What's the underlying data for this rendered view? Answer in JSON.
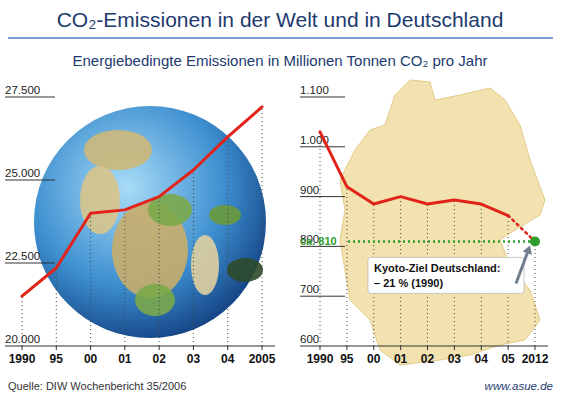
{
  "title": "CO₂-Emissionen in der Welt und in Deutschland",
  "subtitle": "Energiebedingte Emissionen in Millionen Tonnen CO₂ pro Jahr",
  "source": "Quelle: DIW Wochenbericht 35/2006",
  "website": "www.asue.de",
  "chart_data": [
    {
      "type": "line",
      "categories": [
        "1990",
        "95",
        "00",
        "01",
        "02",
        "03",
        "04",
        "2005"
      ],
      "series": [
        {
          "color": "#e2231a",
          "line_style": "solid",
          "values": [
            21500,
            22350,
            24000,
            24100,
            24500,
            25300,
            26300,
            27200
          ]
        }
      ],
      "ylim": [
        20000,
        27500
      ],
      "yticks": [
        {
          "value": 20000,
          "label": "20.000"
        },
        {
          "value": 22500,
          "label": "22.500"
        },
        {
          "value": 25000,
          "label": "25.000"
        },
        {
          "value": 27500,
          "label": "27.500"
        }
      ],
      "grid": true
    },
    {
      "type": "line",
      "categories": [
        "1990",
        "95",
        "00",
        "01",
        "02",
        "03",
        "04",
        "05",
        "2012"
      ],
      "series": [
        {
          "color": "#e2231a",
          "line_style": "solid",
          "values": [
            1030,
            920,
            885,
            900,
            885,
            893,
            885,
            862,
            null
          ]
        },
        {
          "color": "#e2231a",
          "line_style": "dotted",
          "values": [
            null,
            null,
            null,
            null,
            null,
            null,
            null,
            862,
            810
          ]
        }
      ],
      "ylim": [
        600,
        1100
      ],
      "yticks": [
        600,
        700,
        800,
        900,
        {
          "value": 1000,
          "label": "1.000"
        },
        {
          "value": 1100,
          "label": "1.100"
        }
      ],
      "grid": true,
      "annotations": [
        {
          "value": 810,
          "label": "ca. 810",
          "color": "#2f9e2f",
          "marker": "circle",
          "text": "Kyoto-Ziel Deutschland:",
          "subtext": "– 21 % (1990)"
        }
      ]
    }
  ]
}
